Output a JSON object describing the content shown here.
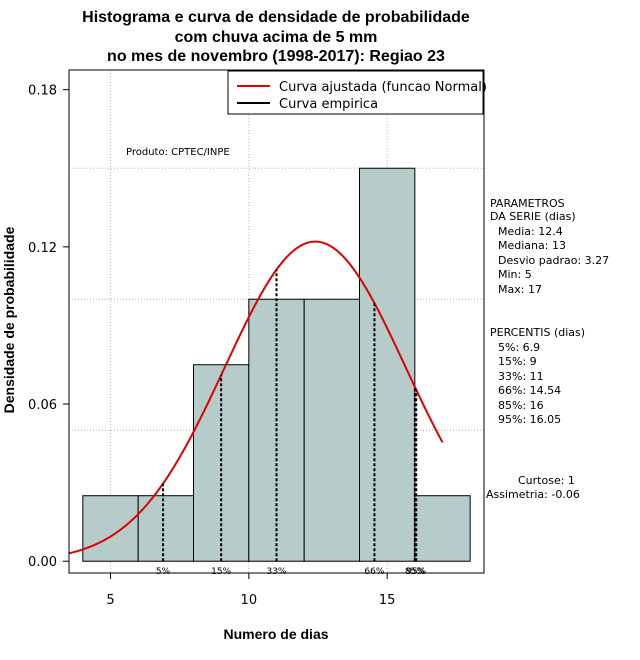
{
  "chart_data": {
    "type": "bar",
    "title_lines": [
      "Histograma e curva de densidade de probabilidade",
      "com chuva acima de 5 mm",
      "no mes de novembro (1998-2017): Regiao 23"
    ],
    "xlabel": "Numero de dias",
    "ylabel": "Densidade de probabilidade",
    "xlim": [
      3.5,
      18.5
    ],
    "ylim": [
      -0.0045,
      0.1875
    ],
    "x_ticks": [
      5,
      10,
      15
    ],
    "y_ticks": [
      0.0,
      0.06,
      0.12,
      0.18
    ],
    "y_tick_labels": [
      "0.00",
      "0.06",
      "0.12",
      "0.18"
    ],
    "x_gridlines": [
      5,
      10,
      15
    ],
    "y_gridlines": [
      0.05,
      0.1,
      0.15
    ],
    "bins": [
      {
        "start": 4,
        "end": 6,
        "density": 0.025
      },
      {
        "start": 6,
        "end": 8,
        "density": 0.025
      },
      {
        "start": 8,
        "end": 10,
        "density": 0.075
      },
      {
        "start": 10,
        "end": 12,
        "density": 0.1
      },
      {
        "start": 12,
        "end": 14,
        "density": 0.1
      },
      {
        "start": 14,
        "end": 16,
        "density": 0.15
      },
      {
        "start": 16,
        "end": 18,
        "density": 0.025
      }
    ],
    "bar_fill": "#b6cccb",
    "normal_curve": {
      "name": "Curva ajustada (funcao Normal)",
      "mean": 12.4,
      "sd": 3.27,
      "x_from": 3.5,
      "x_to": 17,
      "color": "#e00000"
    },
    "empirical_curve": {
      "name": "Curva empirica",
      "color": "#000000"
    },
    "percentile_lines": [
      {
        "label": "5%",
        "x": 6.9
      },
      {
        "label": "15%",
        "x": 9
      },
      {
        "label": "33%",
        "x": 11
      },
      {
        "label": "66%",
        "x": 14.54
      },
      {
        "label": "85%",
        "x": 16
      },
      {
        "label": "95%",
        "x": 16.05
      }
    ],
    "source_note": "Produto: CPTEC/INPE",
    "parametros": {
      "header": [
        "PARAMETROS",
        "DA SERIE (dias)"
      ],
      "items": [
        "Media: 12.4",
        "Mediana: 13",
        "Desvio padrao: 3.27",
        "Min: 5",
        "Max: 17"
      ]
    },
    "percentis": {
      "header": "PERCENTIS (dias)",
      "items": [
        "5%: 6.9",
        "15%: 9",
        "33%: 11",
        "66%: 14.54",
        "85%: 16",
        "95%: 16.05"
      ]
    },
    "curtose": "Curtose: 1",
    "assimetria": "Assimetria: -0.06"
  }
}
